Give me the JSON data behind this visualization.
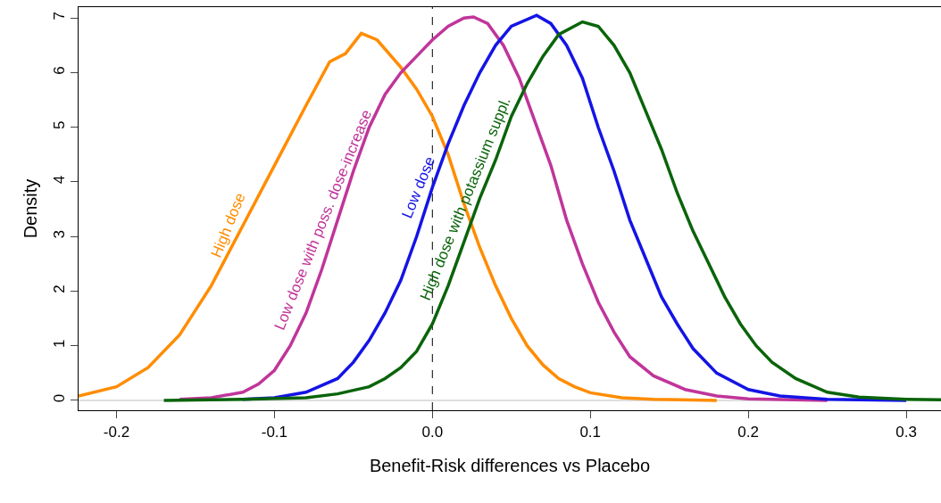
{
  "chart_data": {
    "type": "line",
    "xlabel": "Benefit-Risk differences vs Placebo",
    "ylabel": "Density",
    "xlim": [
      -0.224,
      0.322
    ],
    "ylim": [
      -0.18,
      7.2
    ],
    "xticks": [
      {
        "value": -0.2,
        "label": "-0.2"
      },
      {
        "value": -0.1,
        "label": "-0.1"
      },
      {
        "value": 0,
        "label": "0.0"
      },
      {
        "value": 0.1,
        "label": "0.1"
      },
      {
        "value": 0.2,
        "label": "0.2"
      },
      {
        "value": 0.3,
        "label": "0.3"
      }
    ],
    "yticks": [
      0,
      1,
      2,
      3,
      4,
      5,
      6,
      7
    ],
    "grid": false,
    "legend": false,
    "marker": "none",
    "line_style": "solid",
    "ref_lines": [
      {
        "axis": "x",
        "value": 0,
        "color": "#000000",
        "line_style": "dashed"
      },
      {
        "axis": "y",
        "value": 0,
        "color": "#bebebe",
        "line_style": "solid"
      }
    ],
    "series": [
      {
        "name": "High dose",
        "color": "#ff8c00",
        "x": [
          -0.224,
          -0.2,
          -0.18,
          -0.16,
          -0.14,
          -0.12,
          -0.1,
          -0.08,
          -0.065,
          -0.055,
          -0.045,
          -0.035,
          -0.02,
          -0.01,
          0,
          0.01,
          0.02,
          0.03,
          0.04,
          0.05,
          0.06,
          0.07,
          0.08,
          0.09,
          0.1,
          0.12,
          0.14,
          0.18
        ],
        "values": [
          0.08,
          0.25,
          0.6,
          1.2,
          2.1,
          3.2,
          4.3,
          5.4,
          6.2,
          6.35,
          6.72,
          6.6,
          6.1,
          5.7,
          5.2,
          4.5,
          3.6,
          2.8,
          2.1,
          1.5,
          1.0,
          0.65,
          0.4,
          0.25,
          0.14,
          0.05,
          0.02,
          0.0
        ]
      },
      {
        "name": "Low dose with poss. dose-increase",
        "color": "#c0359a",
        "x": [
          -0.16,
          -0.14,
          -0.12,
          -0.11,
          -0.1,
          -0.09,
          -0.08,
          -0.07,
          -0.06,
          -0.05,
          -0.04,
          -0.03,
          -0.02,
          -0.01,
          0,
          0.01,
          0.02,
          0.026,
          0.035,
          0.045,
          0.055,
          0.065,
          0.075,
          0.085,
          0.095,
          0.105,
          0.115,
          0.125,
          0.14,
          0.16,
          0.18,
          0.2,
          0.25
        ],
        "values": [
          0.02,
          0.05,
          0.15,
          0.3,
          0.55,
          1.0,
          1.6,
          2.4,
          3.3,
          4.2,
          5.0,
          5.6,
          6.0,
          6.3,
          6.6,
          6.85,
          7.0,
          7.02,
          6.9,
          6.5,
          5.9,
          5.1,
          4.3,
          3.3,
          2.5,
          1.8,
          1.25,
          0.8,
          0.45,
          0.2,
          0.08,
          0.03,
          0.0
        ]
      },
      {
        "name": "Low dose",
        "color": "#1414e6",
        "x": [
          -0.12,
          -0.1,
          -0.08,
          -0.06,
          -0.05,
          -0.04,
          -0.03,
          -0.02,
          -0.01,
          0,
          0.01,
          0.02,
          0.03,
          0.04,
          0.05,
          0.066,
          0.075,
          0.085,
          0.095,
          0.105,
          0.115,
          0.125,
          0.135,
          0.145,
          0.155,
          0.165,
          0.18,
          0.2,
          0.22,
          0.25,
          0.3
        ],
        "values": [
          0.02,
          0.05,
          0.15,
          0.4,
          0.7,
          1.1,
          1.6,
          2.2,
          3.0,
          3.9,
          4.7,
          5.4,
          6.0,
          6.5,
          6.85,
          7.05,
          6.9,
          6.5,
          5.9,
          5.0,
          4.2,
          3.3,
          2.6,
          1.9,
          1.4,
          0.95,
          0.5,
          0.2,
          0.08,
          0.02,
          0.0
        ]
      },
      {
        "name": "High dose with potassium suppl.",
        "color": "#0a640a",
        "x": [
          -0.17,
          -0.12,
          -0.08,
          -0.06,
          -0.04,
          -0.03,
          -0.02,
          -0.01,
          0,
          0.01,
          0.02,
          0.03,
          0.04,
          0.05,
          0.06,
          0.07,
          0.08,
          0.095,
          0.105,
          0.115,
          0.125,
          0.135,
          0.145,
          0.155,
          0.165,
          0.175,
          0.185,
          0.195,
          0.205,
          0.215,
          0.23,
          0.25,
          0.27,
          0.3,
          0.322
        ],
        "values": [
          0.0,
          0.02,
          0.05,
          0.12,
          0.25,
          0.4,
          0.6,
          0.9,
          1.4,
          2.1,
          2.9,
          3.7,
          4.4,
          5.2,
          5.8,
          6.3,
          6.7,
          6.93,
          6.85,
          6.5,
          6.0,
          5.3,
          4.6,
          3.8,
          3.1,
          2.5,
          1.9,
          1.4,
          1.0,
          0.7,
          0.4,
          0.15,
          0.06,
          0.02,
          0.01
        ]
      }
    ]
  }
}
